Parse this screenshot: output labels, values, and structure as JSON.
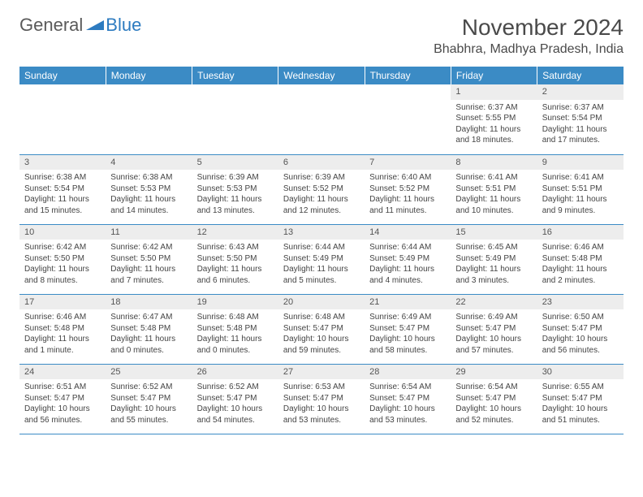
{
  "brand": {
    "part1": "General",
    "part2": "Blue"
  },
  "title": "November 2024",
  "location": "Bhabhra, Madhya Pradesh, India",
  "colors": {
    "header_bg": "#3b8bc5",
    "header_text": "#ffffff",
    "daynum_bg": "#ededed",
    "border": "#3b8bc5",
    "brand_blue": "#2d7bc0",
    "brand_gray": "#5a5a5a"
  },
  "weekdays": [
    "Sunday",
    "Monday",
    "Tuesday",
    "Wednesday",
    "Thursday",
    "Friday",
    "Saturday"
  ],
  "cells": [
    {
      "day": "",
      "lines": []
    },
    {
      "day": "",
      "lines": []
    },
    {
      "day": "",
      "lines": []
    },
    {
      "day": "",
      "lines": []
    },
    {
      "day": "",
      "lines": []
    },
    {
      "day": "1",
      "lines": [
        "Sunrise: 6:37 AM",
        "Sunset: 5:55 PM",
        "Daylight: 11 hours and 18 minutes."
      ]
    },
    {
      "day": "2",
      "lines": [
        "Sunrise: 6:37 AM",
        "Sunset: 5:54 PM",
        "Daylight: 11 hours and 17 minutes."
      ]
    },
    {
      "day": "3",
      "lines": [
        "Sunrise: 6:38 AM",
        "Sunset: 5:54 PM",
        "Daylight: 11 hours and 15 minutes."
      ]
    },
    {
      "day": "4",
      "lines": [
        "Sunrise: 6:38 AM",
        "Sunset: 5:53 PM",
        "Daylight: 11 hours and 14 minutes."
      ]
    },
    {
      "day": "5",
      "lines": [
        "Sunrise: 6:39 AM",
        "Sunset: 5:53 PM",
        "Daylight: 11 hours and 13 minutes."
      ]
    },
    {
      "day": "6",
      "lines": [
        "Sunrise: 6:39 AM",
        "Sunset: 5:52 PM",
        "Daylight: 11 hours and 12 minutes."
      ]
    },
    {
      "day": "7",
      "lines": [
        "Sunrise: 6:40 AM",
        "Sunset: 5:52 PM",
        "Daylight: 11 hours and 11 minutes."
      ]
    },
    {
      "day": "8",
      "lines": [
        "Sunrise: 6:41 AM",
        "Sunset: 5:51 PM",
        "Daylight: 11 hours and 10 minutes."
      ]
    },
    {
      "day": "9",
      "lines": [
        "Sunrise: 6:41 AM",
        "Sunset: 5:51 PM",
        "Daylight: 11 hours and 9 minutes."
      ]
    },
    {
      "day": "10",
      "lines": [
        "Sunrise: 6:42 AM",
        "Sunset: 5:50 PM",
        "Daylight: 11 hours and 8 minutes."
      ]
    },
    {
      "day": "11",
      "lines": [
        "Sunrise: 6:42 AM",
        "Sunset: 5:50 PM",
        "Daylight: 11 hours and 7 minutes."
      ]
    },
    {
      "day": "12",
      "lines": [
        "Sunrise: 6:43 AM",
        "Sunset: 5:50 PM",
        "Daylight: 11 hours and 6 minutes."
      ]
    },
    {
      "day": "13",
      "lines": [
        "Sunrise: 6:44 AM",
        "Sunset: 5:49 PM",
        "Daylight: 11 hours and 5 minutes."
      ]
    },
    {
      "day": "14",
      "lines": [
        "Sunrise: 6:44 AM",
        "Sunset: 5:49 PM",
        "Daylight: 11 hours and 4 minutes."
      ]
    },
    {
      "day": "15",
      "lines": [
        "Sunrise: 6:45 AM",
        "Sunset: 5:49 PM",
        "Daylight: 11 hours and 3 minutes."
      ]
    },
    {
      "day": "16",
      "lines": [
        "Sunrise: 6:46 AM",
        "Sunset: 5:48 PM",
        "Daylight: 11 hours and 2 minutes."
      ]
    },
    {
      "day": "17",
      "lines": [
        "Sunrise: 6:46 AM",
        "Sunset: 5:48 PM",
        "Daylight: 11 hours and 1 minute."
      ]
    },
    {
      "day": "18",
      "lines": [
        "Sunrise: 6:47 AM",
        "Sunset: 5:48 PM",
        "Daylight: 11 hours and 0 minutes."
      ]
    },
    {
      "day": "19",
      "lines": [
        "Sunrise: 6:48 AM",
        "Sunset: 5:48 PM",
        "Daylight: 11 hours and 0 minutes."
      ]
    },
    {
      "day": "20",
      "lines": [
        "Sunrise: 6:48 AM",
        "Sunset: 5:47 PM",
        "Daylight: 10 hours and 59 minutes."
      ]
    },
    {
      "day": "21",
      "lines": [
        "Sunrise: 6:49 AM",
        "Sunset: 5:47 PM",
        "Daylight: 10 hours and 58 minutes."
      ]
    },
    {
      "day": "22",
      "lines": [
        "Sunrise: 6:49 AM",
        "Sunset: 5:47 PM",
        "Daylight: 10 hours and 57 minutes."
      ]
    },
    {
      "day": "23",
      "lines": [
        "Sunrise: 6:50 AM",
        "Sunset: 5:47 PM",
        "Daylight: 10 hours and 56 minutes."
      ]
    },
    {
      "day": "24",
      "lines": [
        "Sunrise: 6:51 AM",
        "Sunset: 5:47 PM",
        "Daylight: 10 hours and 56 minutes."
      ]
    },
    {
      "day": "25",
      "lines": [
        "Sunrise: 6:52 AM",
        "Sunset: 5:47 PM",
        "Daylight: 10 hours and 55 minutes."
      ]
    },
    {
      "day": "26",
      "lines": [
        "Sunrise: 6:52 AM",
        "Sunset: 5:47 PM",
        "Daylight: 10 hours and 54 minutes."
      ]
    },
    {
      "day": "27",
      "lines": [
        "Sunrise: 6:53 AM",
        "Sunset: 5:47 PM",
        "Daylight: 10 hours and 53 minutes."
      ]
    },
    {
      "day": "28",
      "lines": [
        "Sunrise: 6:54 AM",
        "Sunset: 5:47 PM",
        "Daylight: 10 hours and 53 minutes."
      ]
    },
    {
      "day": "29",
      "lines": [
        "Sunrise: 6:54 AM",
        "Sunset: 5:47 PM",
        "Daylight: 10 hours and 52 minutes."
      ]
    },
    {
      "day": "30",
      "lines": [
        "Sunrise: 6:55 AM",
        "Sunset: 5:47 PM",
        "Daylight: 10 hours and 51 minutes."
      ]
    }
  ]
}
